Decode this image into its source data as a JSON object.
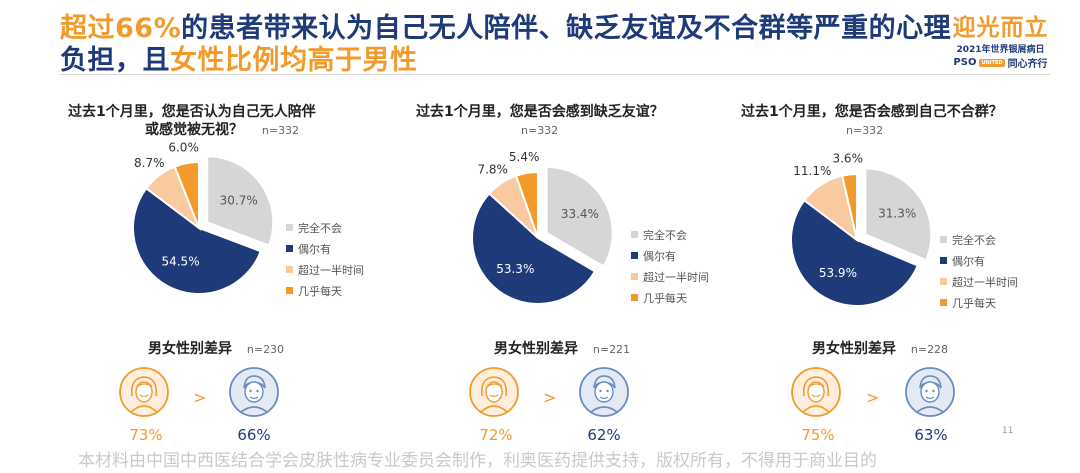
{
  "header": {
    "title_line1_hl": "超过66%",
    "title_line1_rest": "的患者带来认为自己无人陪伴、缺乏友谊及不合群等严重的心理",
    "title_line2_a": "负担，且",
    "title_line2_hl": "女性比例均高于男性",
    "logo_main": "迎光而立",
    "logo_sub": "2021年世界银屑病日",
    "logo_brand": "PSO",
    "logo_badge": "UNITED",
    "logo_tag": "同心齐行"
  },
  "colors": {
    "navy": "#1f3a78",
    "orange": "#f39a2c",
    "light_orange": "#f9c9a0",
    "gray": "#d6d6d6"
  },
  "legend": [
    "完全不会",
    "偶尔有",
    "超过一半时间",
    "几乎每天"
  ],
  "chart_data": [
    {
      "type": "pie",
      "title": "过去1个月里，您是否认为自己无人陪伴或感觉被无视？",
      "title_line1": "过去1个月里，您是否认为自己无人陪伴",
      "title_line2": "或感觉被无视？",
      "n": "n=332",
      "categories": [
        "完全不会",
        "偶尔有",
        "超过一半时间",
        "几乎每天"
      ],
      "values": [
        30.7,
        54.5,
        8.7,
        6.0
      ],
      "labels": [
        "30.7%",
        "54.5%",
        "8.7%",
        "6.0%"
      ],
      "legend_position": "right"
    },
    {
      "type": "pie",
      "title": "过去1个月里，您是否会感到缺乏友谊？",
      "title_line1": "过去1个月里，您是否会感到缺乏友谊？",
      "title_line2": "",
      "n": "n=332",
      "categories": [
        "完全不会",
        "偶尔有",
        "超过一半时间",
        "几乎每天"
      ],
      "values": [
        33.4,
        53.3,
        7.8,
        5.4
      ],
      "labels": [
        "33.4%",
        "53.3%",
        "7.8%",
        "5.4%"
      ],
      "legend_position": "right"
    },
    {
      "type": "pie",
      "title": "过去1个月里，您是否会感到自己不合群？",
      "title_line1": "过去1个月里，您是否会感到自己不合群？",
      "title_line2": "",
      "n": "n=332",
      "categories": [
        "完全不会",
        "偶尔有",
        "超过一半时间",
        "几乎每天"
      ],
      "values": [
        31.3,
        53.9,
        11.1,
        3.6
      ],
      "labels": [
        "31.3%",
        "53.9%",
        "11.1%",
        "3.6%"
      ],
      "legend_position": "right"
    }
  ],
  "gender": [
    {
      "title": "男女性别差异",
      "n": "n=230",
      "female": "73%",
      "male": "66%",
      "compare": ">"
    },
    {
      "title": "男女性别差异",
      "n": "n=221",
      "female": "72%",
      "male": "62%",
      "compare": ">"
    },
    {
      "title": "男女性别差异",
      "n": "n=228",
      "female": "75%",
      "male": "63%",
      "compare": ">"
    }
  ],
  "footer": "本材料由中国中西医结合学会皮肤性病专业委员会制作，利奥医药提供支持，版权所有，不得用于商业目的",
  "page_number": "11"
}
